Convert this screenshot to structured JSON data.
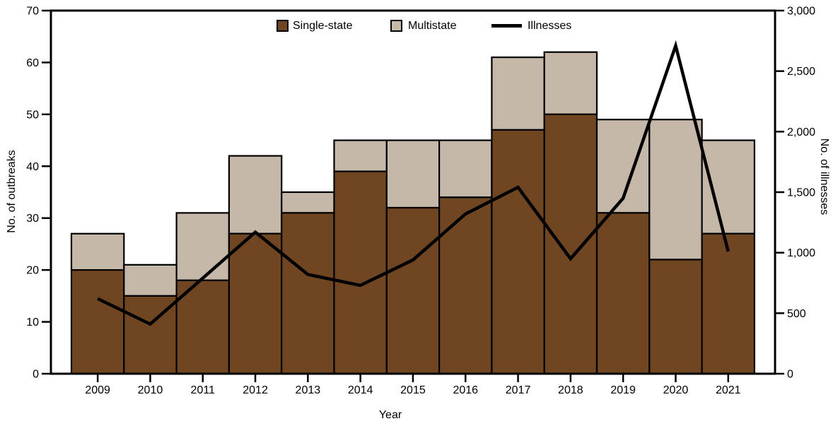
{
  "chart_data": {
    "type": "bar+line combo (stacked bars, secondary axis line)",
    "categories": [
      "2009",
      "2010",
      "2011",
      "2012",
      "2013",
      "2014",
      "2015",
      "2016",
      "2017",
      "2018",
      "2019",
      "2020",
      "2021"
    ],
    "series": [
      {
        "name": "Single-state",
        "type": "bar",
        "stack": "outbreaks",
        "axis": "left",
        "color": "#6F4522",
        "values": [
          20,
          15,
          18,
          27,
          31,
          39,
          32,
          34,
          47,
          50,
          31,
          22,
          27
        ]
      },
      {
        "name": "Multistate",
        "type": "bar",
        "stack": "outbreaks",
        "axis": "left",
        "color": "#C6B8A8",
        "values": [
          7,
          6,
          13,
          15,
          4,
          6,
          13,
          11,
          14,
          12,
          18,
          27,
          18
        ]
      },
      {
        "name": "Illnesses",
        "type": "line",
        "axis": "right",
        "color": "#000000",
        "values": [
          620,
          410,
          790,
          1170,
          820,
          730,
          940,
          1320,
          1540,
          950,
          1450,
          2710,
          1010
        ]
      }
    ],
    "stacked_totals": [
      27,
      21,
      31,
      42,
      35,
      45,
      45,
      45,
      61,
      62,
      49,
      49,
      45
    ],
    "left_axis": {
      "label": "No. of outbreaks",
      "min": 0,
      "max": 70,
      "tick_step": 10,
      "ticks": [
        "0",
        "10",
        "20",
        "30",
        "40",
        "50",
        "60",
        "70"
      ]
    },
    "right_axis": {
      "label": "No. of illnesses",
      "min": 0,
      "max": 3000,
      "tick_step": 500,
      "ticks": [
        "0",
        "500",
        "1,000",
        "1,500",
        "2,000",
        "2,500",
        "3,000"
      ]
    },
    "x_axis": {
      "label": "Year"
    },
    "legend": {
      "position": "top-center",
      "items": [
        {
          "label": "Single-state",
          "swatch": "square",
          "color": "#6F4522"
        },
        {
          "label": "Multistate",
          "swatch": "square",
          "color": "#C6B8A8"
        },
        {
          "label": "Illnesses",
          "swatch": "line",
          "color": "#000000"
        }
      ]
    },
    "grid": "off",
    "frame": "full box, black"
  }
}
